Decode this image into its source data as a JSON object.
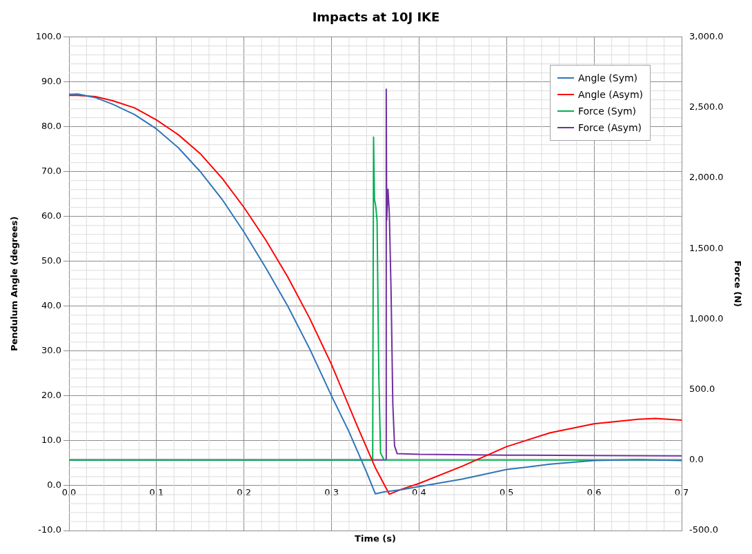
{
  "chart_data": {
    "type": "line",
    "title": "Impacts at 10J IKE",
    "xlabel": "Time (s)",
    "ylabel": "Pendulum Angle (degrees)",
    "y2label": "Force (N)",
    "xlim": [
      0,
      0.7
    ],
    "xticks": [
      {
        "value": 0,
        "label": "0.0"
      },
      {
        "value": 0.1,
        "label": "0.1"
      },
      {
        "value": 0.2,
        "label": "0.2"
      },
      {
        "value": 0.3,
        "label": "0.3"
      },
      {
        "value": 0.4,
        "label": "0.4"
      },
      {
        "value": 0.5,
        "label": "0.5"
      },
      {
        "value": 0.6,
        "label": "0.6"
      },
      {
        "value": 0.7,
        "label": "0.7"
      }
    ],
    "ylim": [
      -10,
      100
    ],
    "yticks": [
      {
        "value": -10,
        "label": "-10.0"
      },
      {
        "value": 0,
        "label": "0.0"
      },
      {
        "value": 10,
        "label": "10.0"
      },
      {
        "value": 20,
        "label": "20.0"
      },
      {
        "value": 30,
        "label": "30.0"
      },
      {
        "value": 40,
        "label": "40.0"
      },
      {
        "value": 50,
        "label": "50.0"
      },
      {
        "value": 60,
        "label": "60.0"
      },
      {
        "value": 70,
        "label": "70.0"
      },
      {
        "value": 80,
        "label": "80.0"
      },
      {
        "value": 90,
        "label": "90.0"
      },
      {
        "value": 100,
        "label": "100.0"
      }
    ],
    "y2lim": [
      -500,
      3000
    ],
    "y2ticks": [
      {
        "value": -500,
        "label": "-500.0"
      },
      {
        "value": 0,
        "label": "0.0"
      },
      {
        "value": 500,
        "label": "500.0"
      },
      {
        "value": 1000,
        "label": "1,000.0"
      },
      {
        "value": 1500,
        "label": "1,500.0"
      },
      {
        "value": 2000,
        "label": "2,000.0"
      },
      {
        "value": 2500,
        "label": "2,500.0"
      },
      {
        "value": 3000,
        "label": "3,000.0"
      }
    ],
    "grid": true,
    "legend": "top right",
    "marker": "none",
    "line_style": "solid",
    "series": [
      {
        "name": "Angle (Sym)",
        "color": "#2e75b6",
        "x": [
          0,
          0.01,
          0.03,
          0.05,
          0.075,
          0.1,
          0.125,
          0.15,
          0.175,
          0.2,
          0.225,
          0.25,
          0.275,
          0.3,
          0.32,
          0.34,
          0.35,
          0.36,
          0.38,
          0.4,
          0.45,
          0.5,
          0.55,
          0.6,
          0.65,
          0.7
        ],
        "values": [
          87.2,
          87.3,
          86.5,
          85,
          82.7,
          79.5,
          75.3,
          70,
          63.8,
          56.5,
          48.5,
          40,
          30.5,
          20,
          12,
          3,
          -1.8,
          -1.4,
          -0.9,
          -0.2,
          1.5,
          3.6,
          4.8,
          5.6,
          5.8,
          5.6
        ]
      },
      {
        "name": "Angle (Asym)",
        "color": "#ff0000",
        "x": [
          0,
          0.01,
          0.03,
          0.05,
          0.075,
          0.1,
          0.125,
          0.15,
          0.175,
          0.2,
          0.225,
          0.25,
          0.275,
          0.3,
          0.33,
          0.35,
          0.366,
          0.38,
          0.4,
          0.45,
          0.5,
          0.55,
          0.6,
          0.65,
          0.67,
          0.7
        ],
        "values": [
          87,
          87,
          86.7,
          85.8,
          84.2,
          81.5,
          78.2,
          74,
          68.5,
          62,
          54.7,
          46.5,
          37.3,
          27,
          13,
          4,
          -1.9,
          -0.8,
          0.5,
          4.4,
          8.7,
          11.8,
          13.8,
          14.8,
          15,
          14.6
        ]
      },
      {
        "name": "Force (Sym)",
        "color": "#00b050",
        "axis": "y2",
        "x": [
          0,
          0.347,
          0.348,
          0.349,
          0.3505,
          0.352,
          0.354,
          0.356,
          0.36,
          0.4,
          0.5,
          0.6,
          0.7
        ],
        "values": [
          0,
          0,
          2290,
          1850,
          1800,
          1700,
          600,
          50,
          0,
          0,
          0,
          0,
          0
        ]
      },
      {
        "name": "Force (Asym)",
        "color": "#7030a0",
        "axis": "y2",
        "x": [
          0,
          0.362,
          0.3625,
          0.363,
          0.3645,
          0.366,
          0.368,
          0.37,
          0.372,
          0.375,
          0.4,
          0.5,
          0.6,
          0.7
        ],
        "values": [
          0,
          0,
          2630,
          1700,
          1920,
          1750,
          1200,
          400,
          100,
          45,
          40,
          35,
          32,
          30
        ]
      }
    ]
  }
}
